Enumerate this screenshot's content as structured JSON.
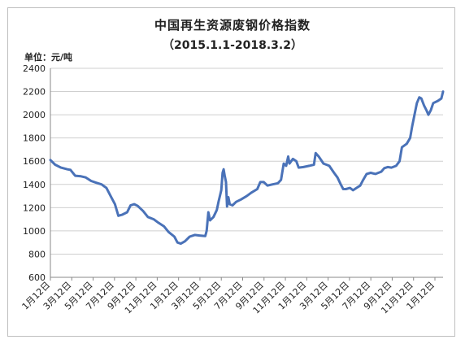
{
  "chart_data": {
    "type": "line",
    "title": "中国再生资源废钢价格指数",
    "subtitle": "（2015.1.1-2018.3.2）",
    "ylabel": "单位：元/吨",
    "xlabel": "",
    "ylim": [
      600,
      2400
    ],
    "yticks": [
      "600",
      "800",
      "1000",
      "1200",
      "1400",
      "1600",
      "1800",
      "2000",
      "2200",
      "2400"
    ],
    "xtick_labels": [
      "1月12日",
      "3月12日",
      "5月12日",
      "7月12日",
      "9月12日",
      "11月12日",
      "1月12日",
      "3月12日",
      "5月12日",
      "7月12日",
      "9月12日",
      "11月12日",
      "1月12日",
      "3月12日",
      "5月12日",
      "7月12日",
      "9月12日",
      "11月12日",
      "1月12日"
    ],
    "grid": "horizontal",
    "line_color": "#4a72b8",
    "series": [
      {
        "values": [
          [
            "2015-01-01",
            1610
          ],
          [
            "2015-01-15",
            1570
          ],
          [
            "2015-02-01",
            1545
          ],
          [
            "2015-02-20",
            1530
          ],
          [
            "2015-03-01",
            1525
          ],
          [
            "2015-03-15",
            1475
          ],
          [
            "2015-04-01",
            1470
          ],
          [
            "2015-04-15",
            1460
          ],
          [
            "2015-05-01",
            1430
          ],
          [
            "2015-05-15",
            1415
          ],
          [
            "2015-06-01",
            1400
          ],
          [
            "2015-06-15",
            1370
          ],
          [
            "2015-07-01",
            1280
          ],
          [
            "2015-07-10",
            1230
          ],
          [
            "2015-07-20",
            1130
          ],
          [
            "2015-08-01",
            1140
          ],
          [
            "2015-08-15",
            1160
          ],
          [
            "2015-08-25",
            1220
          ],
          [
            "2015-09-05",
            1230
          ],
          [
            "2015-09-15",
            1215
          ],
          [
            "2015-10-01",
            1170
          ],
          [
            "2015-10-15",
            1120
          ],
          [
            "2015-11-01",
            1100
          ],
          [
            "2015-11-15",
            1070
          ],
          [
            "2015-12-01",
            1040
          ],
          [
            "2015-12-15",
            990
          ],
          [
            "2016-01-01",
            950
          ],
          [
            "2016-01-10",
            900
          ],
          [
            "2016-01-20",
            890
          ],
          [
            "2016-02-01",
            910
          ],
          [
            "2016-02-15",
            950
          ],
          [
            "2016-03-01",
            965
          ],
          [
            "2016-03-15",
            960
          ],
          [
            "2016-04-01",
            955
          ],
          [
            "2016-04-05",
            1000
          ],
          [
            "2016-04-10",
            1160
          ],
          [
            "2016-04-15",
            1090
          ],
          [
            "2016-04-25",
            1120
          ],
          [
            "2016-05-05",
            1180
          ],
          [
            "2016-05-10",
            1250
          ],
          [
            "2016-05-18",
            1350
          ],
          [
            "2016-05-22",
            1500
          ],
          [
            "2016-05-25",
            1530
          ],
          [
            "2016-05-28",
            1480
          ],
          [
            "2016-06-01",
            1420
          ],
          [
            "2016-06-04",
            1210
          ],
          [
            "2016-06-08",
            1290
          ],
          [
            "2016-06-12",
            1230
          ],
          [
            "2016-06-20",
            1220
          ],
          [
            "2016-07-01",
            1250
          ],
          [
            "2016-07-15",
            1270
          ],
          [
            "2016-08-01",
            1300
          ],
          [
            "2016-08-15",
            1330
          ],
          [
            "2016-09-01",
            1360
          ],
          [
            "2016-09-10",
            1420
          ],
          [
            "2016-09-20",
            1420
          ],
          [
            "2016-10-01",
            1390
          ],
          [
            "2016-10-15",
            1400
          ],
          [
            "2016-11-01",
            1410
          ],
          [
            "2016-11-10",
            1440
          ],
          [
            "2016-11-18",
            1580
          ],
          [
            "2016-11-25",
            1560
          ],
          [
            "2016-12-01",
            1640
          ],
          [
            "2016-12-05",
            1580
          ],
          [
            "2016-12-15",
            1620
          ],
          [
            "2016-12-25",
            1600
          ],
          [
            "2017-01-01",
            1545
          ],
          [
            "2017-01-15",
            1550
          ],
          [
            "2017-02-01",
            1560
          ],
          [
            "2017-02-15",
            1570
          ],
          [
            "2017-02-20",
            1670
          ],
          [
            "2017-03-01",
            1640
          ],
          [
            "2017-03-15",
            1580
          ],
          [
            "2017-04-01",
            1560
          ],
          [
            "2017-04-15",
            1500
          ],
          [
            "2017-04-25",
            1460
          ],
          [
            "2017-05-05",
            1400
          ],
          [
            "2017-05-12",
            1360
          ],
          [
            "2017-05-20",
            1360
          ],
          [
            "2017-06-01",
            1370
          ],
          [
            "2017-06-10",
            1350
          ],
          [
            "2017-06-20",
            1370
          ],
          [
            "2017-07-01",
            1390
          ],
          [
            "2017-07-10",
            1440
          ],
          [
            "2017-07-20",
            1490
          ],
          [
            "2017-08-01",
            1500
          ],
          [
            "2017-08-15",
            1490
          ],
          [
            "2017-09-01",
            1510
          ],
          [
            "2017-09-10",
            1540
          ],
          [
            "2017-09-20",
            1550
          ],
          [
            "2017-10-01",
            1545
          ],
          [
            "2017-10-15",
            1560
          ],
          [
            "2017-10-25",
            1600
          ],
          [
            "2017-11-01",
            1720
          ],
          [
            "2017-11-15",
            1750
          ],
          [
            "2017-11-25",
            1800
          ],
          [
            "2017-12-01",
            1900
          ],
          [
            "2017-12-08",
            2000
          ],
          [
            "2017-12-15",
            2100
          ],
          [
            "2017-12-22",
            2150
          ],
          [
            "2017-12-28",
            2140
          ],
          [
            "2018-01-05",
            2080
          ],
          [
            "2018-01-12",
            2040
          ],
          [
            "2018-01-18",
            2000
          ],
          [
            "2018-01-25",
            2040
          ],
          [
            "2018-02-01",
            2100
          ],
          [
            "2018-02-15",
            2120
          ],
          [
            "2018-02-25",
            2140
          ],
          [
            "2018-03-02",
            2200
          ]
        ]
      }
    ]
  }
}
